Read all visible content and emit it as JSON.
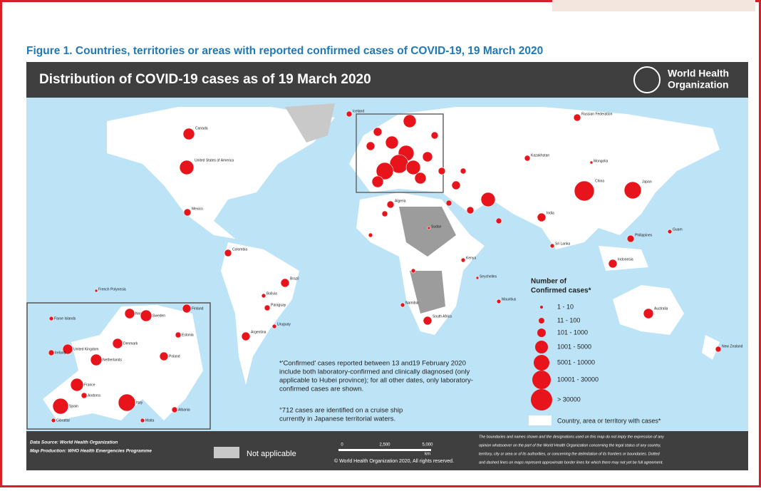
{
  "figure_caption": "Figure 1. Countries, territories or areas with reported confirmed cases of COVID-19, 19 March 2020",
  "map": {
    "title": "Distribution of COVID-19  cases as of 19 March 2020",
    "logo_lines": [
      "World Health",
      "Organization"
    ],
    "country_labels": [
      "Canada",
      "United States of America",
      "Mexico",
      "Colombia",
      "Brazil",
      "Bolivia",
      "Paraguay",
      "Uruguay",
      "Argentina",
      "French Polynesia",
      "Iceland",
      "Algeria",
      "Sudan",
      "Kenya",
      "Namibia",
      "South Africa",
      "Seychelles",
      "Mauritius",
      "Russian Federation",
      "Kazakhstan",
      "Mongolia",
      "China",
      "India",
      "Sri Lanka",
      "Japan",
      "Philippines",
      "Guam",
      "Indonesia",
      "Australia",
      "New Zealand"
    ],
    "inset_labels": [
      "Faroe Islands",
      "Norway",
      "Sweden",
      "Finland",
      "Estonia",
      "Denmark",
      "United Kingdom",
      "Ireland",
      "Netherlands",
      "Poland",
      "France",
      "Spain",
      "Andorra",
      "Italy",
      "Gibraltar",
      "Malta",
      "Albania"
    ]
  },
  "legend": {
    "title_lines": [
      "Number of",
      "Confirmed cases*"
    ],
    "classes": [
      "1 - 10",
      "11 - 100",
      "101 - 1000",
      "1001 - 5000",
      "5001 - 10000",
      "10001 - 30000",
      "> 30000"
    ],
    "area_label": "Country, area or territory with cases*"
  },
  "notes": [
    [
      "*'Confirmed' cases reported between 13 and19 February 2020",
      "include both laboratory-confirmed and clinically diagnosed (only",
      "applicable to Hubei province); for all other dates, only laboratory-",
      "confirmed cases are shown."
    ],
    [
      "°712 cases are identified on a cruise ship",
      "currently in Japanese territorial waters."
    ]
  ],
  "footer": {
    "data_source": "Data Source: World Health Organization",
    "map_production": "Map Production: WHO Health Emergencies Programme",
    "not_applicable": "Not applicable",
    "scale_labels": [
      "0",
      "2,500",
      "5,000",
      "km"
    ],
    "copyright": "© World Health Organization  2020,  All rights reserved.",
    "disclaimer_lines": [
      "The boundaries and names shown and the designations used on this map do not imply the expression of any",
      "opinion whatsoever on the part of the World Health Organization concerning the legal status of any country,",
      "territory, city or area or of its authorities, or concerning the delimitation of its frontiers or boundaries. Dotted",
      "and dashed lines on maps represent approximate border lines for which there may not yet be full agreement."
    ]
  }
}
